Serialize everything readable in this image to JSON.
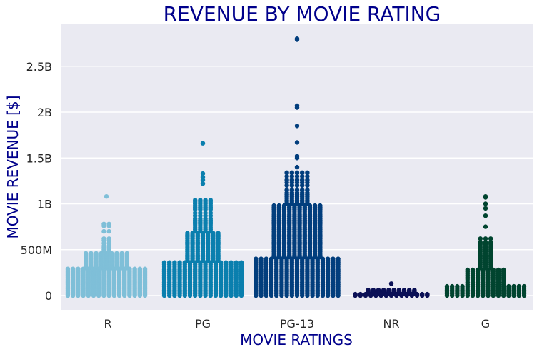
{
  "chart_data": {
    "type": "scatter",
    "style": "swarm",
    "title": "REVENUE BY MOVIE RATING",
    "xlabel": "MOVIE RATINGS",
    "ylabel": "MOVIE REVENUE [$]",
    "categories": [
      "R",
      "PG",
      "PG-13",
      "NR",
      "G"
    ],
    "y_ticks": [
      0,
      500000000,
      1000000000,
      1500000000,
      2000000000,
      2500000000
    ],
    "y_tick_labels": [
      "0",
      "500M",
      "1B",
      "1.5B",
      "2B",
      "2.5B"
    ],
    "ylim": [
      -150000000,
      2950000000
    ],
    "grid": true,
    "colors": {
      "background": "#eaeaf2",
      "grid": "#ffffff",
      "title": "#00008b",
      "labels": "#00008b",
      "ticks": "#262626",
      "R": "#7fbfd8",
      "PG": "#0a7fae",
      "PG-13": "#023e7d",
      "NR": "#0b1056",
      "G": "#00442f"
    },
    "series": [
      {
        "category": "R",
        "summary": "dense band of points from 0 to about 300M, thinning above; outliers near 590M, 700M, 760M, 780M and 1.08B",
        "values": [
          1080000000,
          780000000,
          760000000,
          700000000,
          620000000,
          600000000,
          570000000,
          540000000,
          520000000,
          500000000,
          480000000,
          460000000,
          450000000,
          440000000,
          430000000,
          420000000,
          410000000,
          400000000,
          390000000,
          380000000,
          370000000,
          360000000,
          350000000,
          340000000,
          330000000,
          320000000,
          310000000,
          300000000,
          290000000,
          280000000,
          270000000,
          260000000,
          250000000,
          240000000,
          230000000,
          220000000,
          210000000,
          200000000,
          190000000,
          180000000,
          170000000,
          160000000,
          150000000,
          140000000,
          130000000,
          120000000,
          110000000,
          100000000,
          90000000,
          80000000,
          70000000,
          60000000,
          50000000,
          40000000,
          30000000,
          20000000,
          10000000,
          0
        ]
      },
      {
        "category": "PG",
        "summary": "dense band from 0 to about 380M; sparser up to ~1.05B; outliers near 1.25B, 1.28B, 1.33B and 1.66B",
        "values": [
          1660000000,
          1330000000,
          1290000000,
          1260000000,
          1220000000,
          1040000000,
          1020000000,
          1000000000,
          980000000,
          960000000,
          940000000,
          900000000,
          870000000,
          840000000,
          820000000,
          800000000,
          780000000,
          760000000,
          740000000,
          720000000,
          700000000,
          680000000,
          660000000,
          640000000,
          620000000,
          600000000,
          580000000,
          560000000,
          540000000,
          520000000,
          500000000,
          480000000,
          460000000,
          440000000,
          420000000,
          400000000,
          380000000,
          360000000,
          340000000,
          320000000,
          300000000,
          280000000,
          260000000,
          240000000,
          220000000,
          200000000,
          180000000,
          160000000,
          140000000,
          120000000,
          100000000,
          80000000,
          60000000,
          40000000,
          20000000,
          0
        ]
      },
      {
        "category": "PG-13",
        "summary": "densest column, 0 to about 450M with wide spread; sparse up to ~1.5B; outliers near 1.67B, 1.85B, 2.05B, 2.07B, 2.79B and 2.80B",
        "values": [
          2800000000,
          2790000000,
          2070000000,
          2050000000,
          1850000000,
          1670000000,
          1520000000,
          1500000000,
          1400000000,
          1340000000,
          1300000000,
          1260000000,
          1230000000,
          1200000000,
          1150000000,
          1120000000,
          1100000000,
          1080000000,
          1060000000,
          1040000000,
          1020000000,
          1000000000,
          980000000,
          960000000,
          940000000,
          920000000,
          900000000,
          880000000,
          860000000,
          840000000,
          820000000,
          800000000,
          780000000,
          760000000,
          740000000,
          720000000,
          700000000,
          680000000,
          660000000,
          640000000,
          620000000,
          600000000,
          580000000,
          560000000,
          540000000,
          520000000,
          500000000,
          480000000,
          460000000,
          440000000,
          420000000,
          400000000,
          380000000,
          360000000,
          340000000,
          320000000,
          300000000,
          280000000,
          260000000,
          240000000,
          220000000,
          200000000,
          180000000,
          160000000,
          140000000,
          120000000,
          100000000,
          80000000,
          60000000,
          40000000,
          20000000,
          0
        ]
      },
      {
        "category": "NR",
        "summary": "small cluster near 0; a few points up to ~60M; outlier near 130M",
        "values": [
          130000000,
          60000000,
          55000000,
          50000000,
          45000000,
          40000000,
          35000000,
          30000000,
          25000000,
          20000000,
          15000000,
          10000000,
          5000000,
          0
        ]
      },
      {
        "category": "G",
        "summary": "band from 0 to about 100M; tapering swarm up to ~600M; outliers near 750M, 950M, 1.0B, 1.07B and 1.08B",
        "values": [
          1080000000,
          1070000000,
          1000000000,
          950000000,
          870000000,
          750000000,
          620000000,
          580000000,
          560000000,
          540000000,
          520000000,
          500000000,
          480000000,
          460000000,
          440000000,
          420000000,
          400000000,
          380000000,
          360000000,
          340000000,
          320000000,
          300000000,
          280000000,
          260000000,
          240000000,
          220000000,
          200000000,
          180000000,
          160000000,
          140000000,
          120000000,
          100000000,
          80000000,
          60000000,
          40000000,
          20000000,
          0
        ]
      }
    ]
  }
}
